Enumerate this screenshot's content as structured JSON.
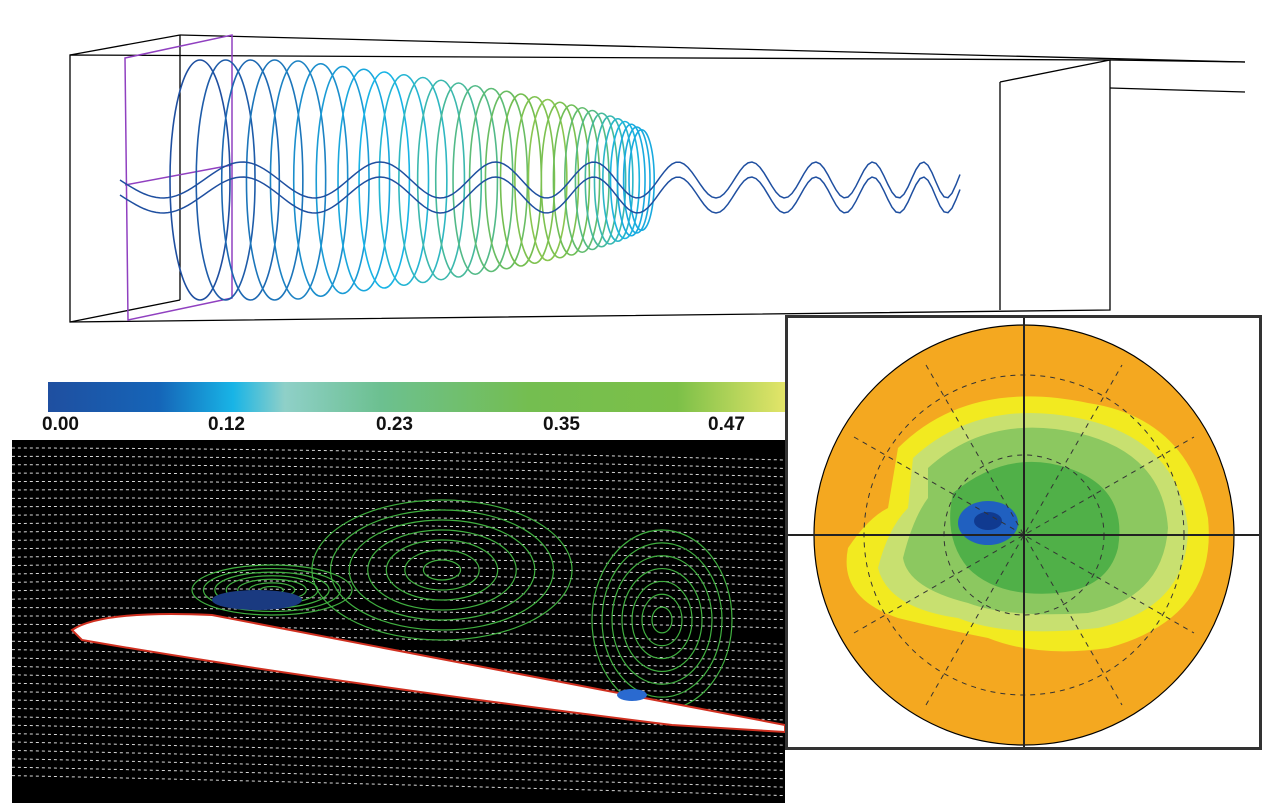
{
  "colorbar": {
    "ticks": [
      "0.00",
      "0.12",
      "0.23",
      "0.35",
      "0.47"
    ],
    "colors": [
      "#1f4fa0",
      "#18b4e6",
      "#8fd0c8",
      "#74be50",
      "#e6e66a"
    ]
  },
  "panels": {
    "vortex_tube": {
      "line_colors": [
        "#1f4fa0",
        "#18b4e6",
        "#74be50",
        "#e6e66a",
        "#e08030",
        "#d02020",
        "#9040c0"
      ]
    },
    "airfoil_flow": {
      "background": "#000000",
      "streamline_color": "#d8d8d8",
      "vortex_color": "#40b040"
    },
    "polar_map": {
      "fill_colors": [
        "#f4a820",
        "#f2ea20",
        "#c8e070",
        "#8cc860",
        "#50b048",
        "#2060c0"
      ]
    }
  }
}
